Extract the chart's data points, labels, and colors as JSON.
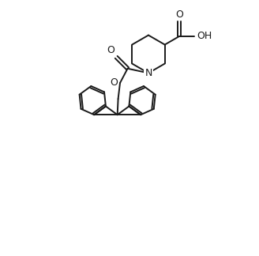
{
  "background": "#ffffff",
  "line_color": "#1a1a1a",
  "line_width": 1.4,
  "figsize": [
    3.28,
    3.24
  ],
  "dpi": 100,
  "xlim": [
    -0.5,
    4.5
  ],
  "ylim": [
    -4.5,
    2.2
  ]
}
